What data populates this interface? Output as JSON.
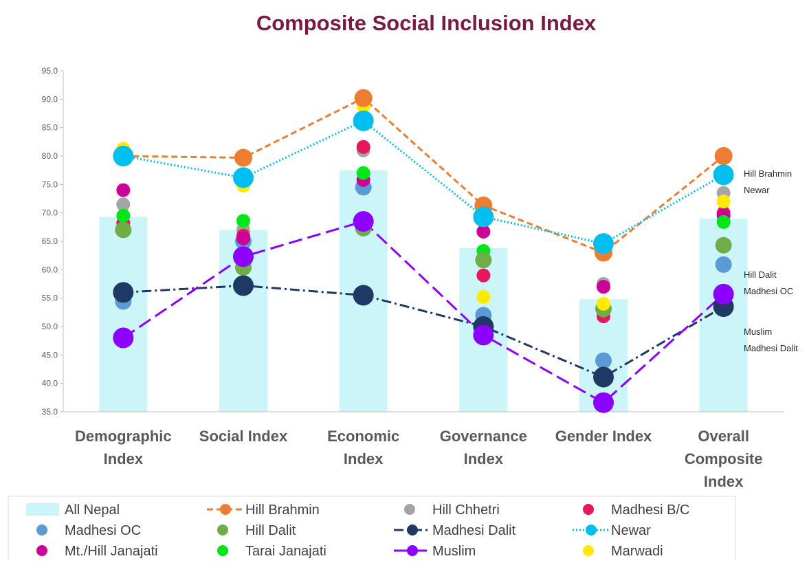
{
  "chart_data": {
    "type": "bar",
    "title": "Composite Social Inclusion Index",
    "xlabel": "",
    "ylabel": "",
    "ylim": [
      35,
      95
    ],
    "yticks": [
      "35.0",
      "40.0",
      "45.0",
      "50.0",
      "55.0",
      "60.0",
      "65.0",
      "70.0",
      "75.0",
      "80.0",
      "85.0",
      "90.0",
      "95.0"
    ],
    "grid": false,
    "legend_position": "bottom",
    "categories": [
      [
        "Demographic",
        "Index"
      ],
      [
        "Social Index"
      ],
      [
        "Economic",
        "Index"
      ],
      [
        "Governance",
        "Index"
      ],
      [
        "Gender Index"
      ],
      [
        "Overall",
        "Composite",
        "Index"
      ]
    ],
    "series": [
      {
        "name": "All Nepal",
        "kind": "bar",
        "color": "#ccf5fa",
        "values": [
          69.3,
          67.0,
          77.5,
          63.8,
          54.8,
          69.0
        ]
      },
      {
        "name": "Hill Brahmin",
        "kind": "line",
        "dash": "dashed",
        "color": "#ed7d31",
        "values": [
          80.0,
          79.7,
          90.2,
          71.3,
          63.0,
          80.0
        ]
      },
      {
        "name": "Hill Chhetri",
        "kind": "marker",
        "color": "#a5a5a5",
        "values": [
          71.5,
          67.0,
          81.0,
          70.5,
          57.5,
          73.5
        ]
      },
      {
        "name": "Madhesi B/C",
        "kind": "marker",
        "color": "#e8175d",
        "values": [
          68.2,
          66.0,
          81.6,
          59.0,
          51.8,
          70.0
        ]
      },
      {
        "name": "Madhesi OC",
        "kind": "marker",
        "color": "#5b9bd5",
        "values": [
          54.4,
          65.0,
          74.5,
          52.0,
          44.0,
          60.9
        ]
      },
      {
        "name": "Hill Dalit",
        "kind": "marker",
        "color": "#70ad47",
        "values": [
          67.0,
          60.4,
          67.3,
          61.7,
          53.1,
          64.3
        ]
      },
      {
        "name": "Madhesi Dalit",
        "kind": "line",
        "dash": "dashdot",
        "color": "#1f3864",
        "values": [
          56.0,
          57.2,
          55.5,
          50.0,
          41.1,
          53.5
        ]
      },
      {
        "name": "Newar",
        "kind": "line",
        "dash": "dotted",
        "color": "#00bfef",
        "values": [
          80.0,
          76.2,
          86.2,
          69.3,
          64.6,
          76.7
        ]
      },
      {
        "name": "Mt./Hill Janajati",
        "kind": "marker",
        "color": "#cc0099",
        "values": [
          74.0,
          65.5,
          75.8,
          66.7,
          57.0,
          69.5
        ]
      },
      {
        "name": "Tarai Janajati",
        "kind": "marker",
        "color": "#00e61a",
        "values": [
          69.5,
          68.6,
          77.0,
          63.3,
          52.8,
          68.4
        ]
      },
      {
        "name": "Muslim",
        "kind": "line",
        "dash": "longdash",
        "color": "#8b00ff",
        "values": [
          48.0,
          62.3,
          68.5,
          48.5,
          36.6,
          55.7
        ]
      },
      {
        "name": "Marwadi",
        "kind": "marker",
        "color": "#ffea00",
        "values": [
          81.3,
          74.8,
          88.8,
          55.2,
          54.0,
          72.0
        ]
      }
    ],
    "annotations": [
      "Hill Brahmin",
      "Newar",
      "Hill Dalit",
      "Madhesi OC",
      "Muslim",
      "Madhesi Dalit"
    ]
  }
}
